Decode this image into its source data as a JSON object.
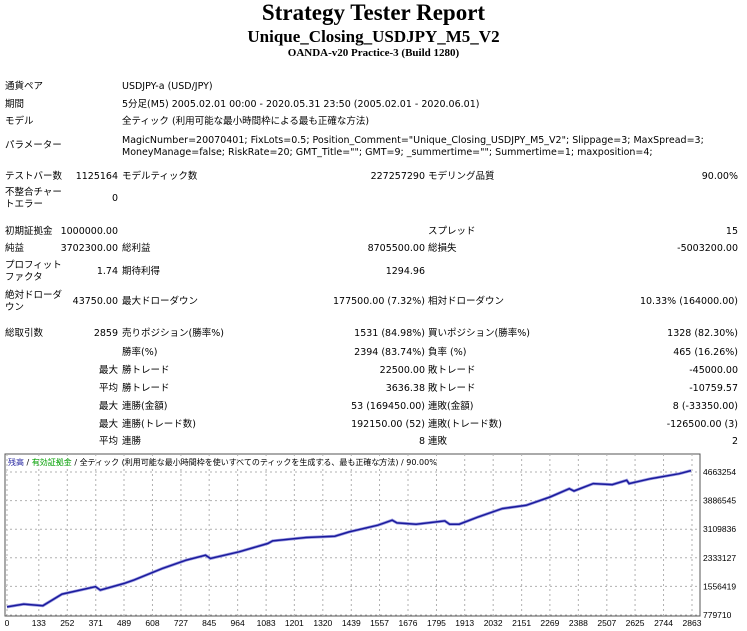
{
  "header": {
    "title": "Strategy Tester Report",
    "ea": "Unique_Closing_USDJPY_M5_V2",
    "server": "OANDA-v20 Practice-3 (Build 1280)"
  },
  "info": {
    "symbol_label": "通貨ペア",
    "symbol": "USDJPY-a (USD/JPY)",
    "period_label": "期間",
    "period": "5分足(M5) 2005.02.01 00:00 - 2020.05.31 23:50 (2005.02.01 - 2020.06.01)",
    "model_label": "モデル",
    "model": "全ティック (利用可能な最小時間枠による最も正確な方法)",
    "params_label": "パラメーター",
    "params_1": "MagicNumber=20070401; FixLots=0.5; Position_Comment=\"Unique_Closing_USDJPY_M5_V2\"; Slippage=3; MaxSpread=3;",
    "params_2": "MoneyManage=false; RiskRate=20; GMT_Title=\"\"; GMT=9; _summertime=\"\"; Summertime=1; maxposition=4;",
    "bars_label": "テストバー数",
    "bars": "1125164",
    "ticks_label": "モデルティック数",
    "ticks": "227257290",
    "quality_label": "モデリング品質",
    "quality": "90.00%",
    "errors_label_1": "不整合チャー",
    "errors_label_2": "トエラー",
    "errors": "0"
  },
  "stats": {
    "deposit_label": "初期証拠金",
    "deposit": "1000000.00",
    "spread_label": "スプレッド",
    "spread": "15",
    "net_label": "純益",
    "net": "3702300.00",
    "gross_profit_label": "総利益",
    "gross_profit": "8705500.00",
    "gross_loss_label": "総損失",
    "gross_loss": "-5003200.00",
    "pf_label_1": "プロフィット",
    "pf_label_2": "ファクタ",
    "pf": "1.74",
    "payoff_label": "期待利得",
    "payoff": "1294.96",
    "abs_dd_label_1": "絶対ドローダ",
    "abs_dd_label_2": "ウン",
    "abs_dd": "43750.00",
    "max_dd_label": "最大ドローダウン",
    "max_dd": "177500.00 (7.32%)",
    "rel_dd_label": "相対ドローダウン",
    "rel_dd": "10.33% (164000.00)",
    "trades_label": "総取引数",
    "trades": "2859",
    "short_label": "売りポジション(勝率%)",
    "short": "1531 (84.98%)",
    "long_label": "買いポジション(勝率%)",
    "long": "1328 (82.30%)",
    "win_label": "勝率(%)",
    "win": "2394 (83.74%)",
    "loss_label": "負率 (%)",
    "loss": "465 (16.26%)",
    "max_label": "最大",
    "avg_label": "平均",
    "largest_win_label": "勝トレード",
    "largest_win": "22500.00",
    "largest_loss_label": "敗トレード",
    "largest_loss": "-45000.00",
    "avg_win_label": "勝トレード",
    "avg_win": "3636.38",
    "avg_loss_label": "敗トレード",
    "avg_loss": "-10759.57",
    "max_cw_money_label": "連勝(金額)",
    "max_cw_money": "53 (169450.00)",
    "max_cl_money_label": "連敗(金額)",
    "max_cl_money": "8 (-33350.00)",
    "max_cw_count_label": "連勝(トレード数)",
    "max_cw_count": "192150.00 (52)",
    "max_cl_count_label": "連敗(トレード数)",
    "max_cl_count": "-126500.00 (3)",
    "avg_cw_label": "連勝",
    "avg_cw": "8",
    "avg_cl_label": "連敗",
    "avg_cl": "2"
  },
  "chart_data": {
    "type": "line",
    "legend": {
      "balance": "残高",
      "equity": "有効証拠金",
      "model": "全ティック (利用可能な最小時間枠を使いすべてのティックを生成する、最も正確な方法)",
      "quality": "90.00%",
      "sep": " / "
    },
    "colors": {
      "balance": "#1a1a9c",
      "equity": "#00a000",
      "grid": "#b0b0b0"
    },
    "x_ticks": [
      0,
      133,
      252,
      371,
      489,
      608,
      727,
      845,
      964,
      1083,
      1201,
      1320,
      1439,
      1557,
      1676,
      1795,
      1913,
      2032,
      2151,
      2269,
      2388,
      2507,
      2625,
      2744,
      2863
    ],
    "y_ticks": [
      779710,
      1556419,
      2333127,
      3109836,
      3886545,
      4663254
    ],
    "xlim": [
      0,
      2900
    ],
    "ylim": [
      779710,
      4760000
    ],
    "series": [
      {
        "name": "残高",
        "x": [
          0,
          70,
          150,
          230,
          370,
          390,
          490,
          530,
          650,
          750,
          830,
          850,
          970,
          1090,
          1110,
          1250,
          1370,
          1430,
          1550,
          1610,
          1630,
          1710,
          1830,
          1850,
          1890,
          1970,
          2070,
          2170,
          2270,
          2350,
          2370,
          2450,
          2530,
          2590,
          2600,
          2690,
          2810,
          2859
        ],
        "y": [
          1000000,
          1077000,
          1032000,
          1348000,
          1547000,
          1457000,
          1637000,
          1728000,
          2044000,
          2270000,
          2405000,
          2315000,
          2495000,
          2721000,
          2793000,
          2884000,
          2920000,
          3037000,
          3218000,
          3353000,
          3281000,
          3245000,
          3335000,
          3245000,
          3245000,
          3444000,
          3669000,
          3760000,
          3985000,
          4211000,
          4148000,
          4347000,
          4320000,
          4437000,
          4347000,
          4482000,
          4618000,
          4702300
        ]
      }
    ]
  }
}
